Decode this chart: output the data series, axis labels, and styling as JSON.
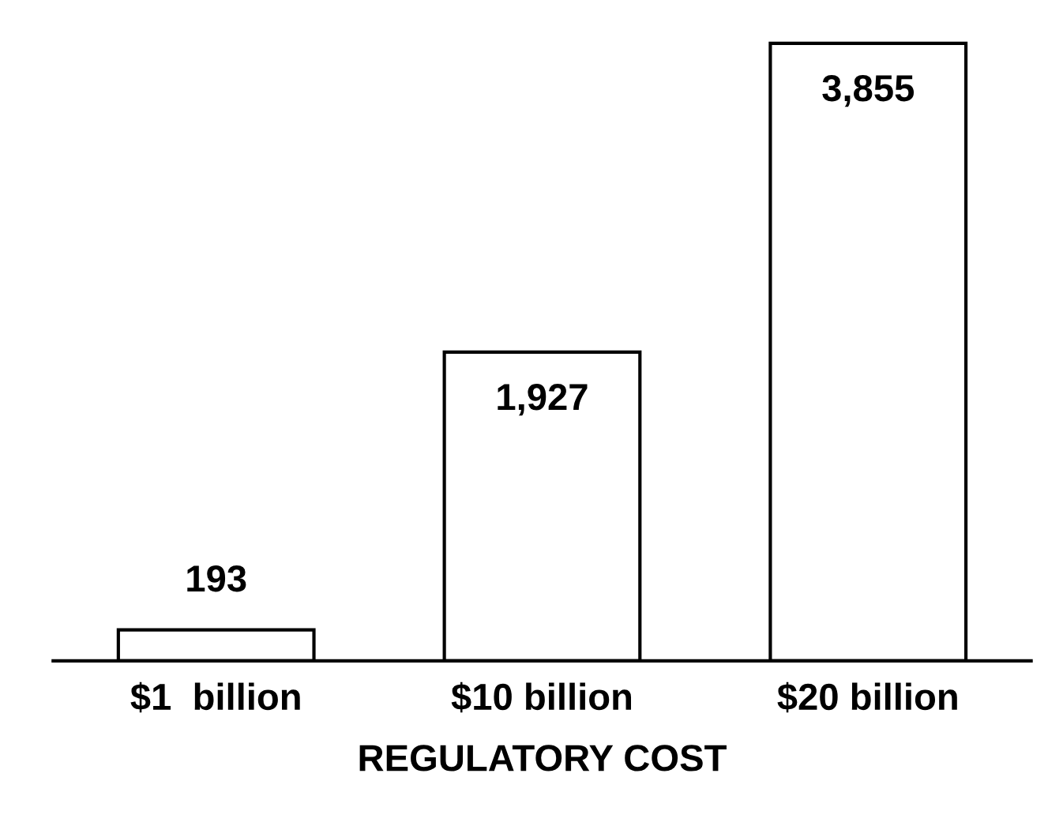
{
  "chart_data": {
    "type": "bar",
    "xlabel": "REGULATORY COST",
    "categories": [
      "$1  billion",
      "$10 billion",
      "$20 billion"
    ],
    "values": [
      193,
      1927,
      3855
    ],
    "color": "#ffffff",
    "value_labels": [
      "193",
      "1,927",
      "3,855"
    ],
    "grid": false,
    "legend": false
  }
}
